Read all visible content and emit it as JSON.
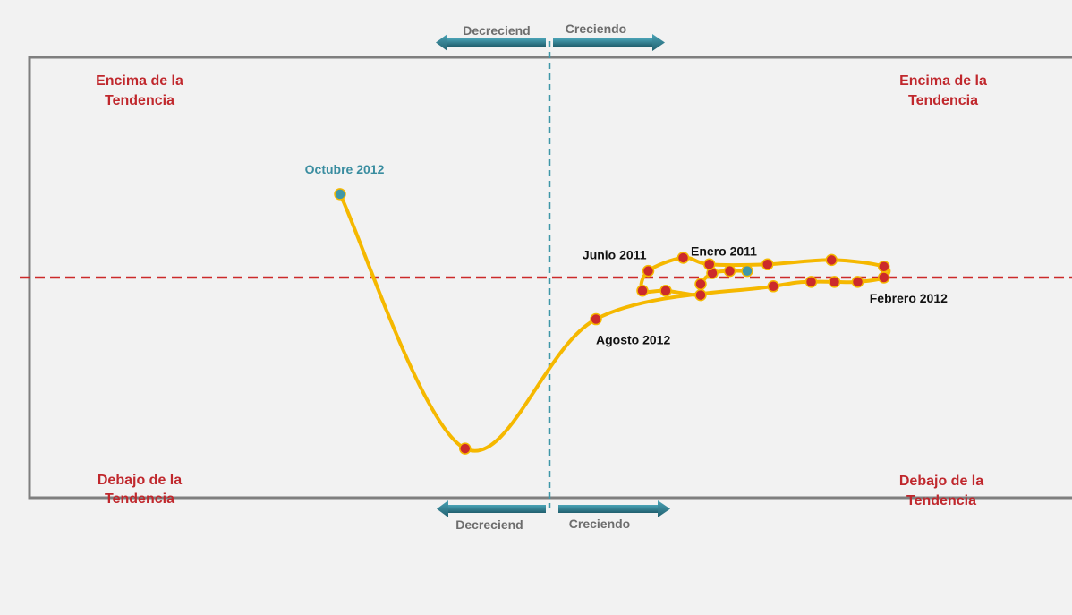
{
  "colors": {
    "frame": "#7f7f7f",
    "curve": "#f5b800",
    "dot": "#cc2a2a",
    "dot_highlight": "#3f97a8",
    "trend_line": "#cc2a2a",
    "divider": "#3f97a8",
    "arrow": "#2b7a8c",
    "quadrant_text": "#c0282d",
    "axis_text": "#6d6d6d",
    "point_text": "#111111",
    "highlight_text": "#3a8da0"
  },
  "quadrants": {
    "top_left": [
      "Encima de la",
      "Tendencia"
    ],
    "top_right": [
      "Encima de la",
      "Tendencia"
    ],
    "bottom_left": [
      "Debajo de la",
      "Tendencia"
    ],
    "bottom_right": [
      "Debajo de la",
      "Tendencia"
    ]
  },
  "direction_labels": {
    "top_left": "Decreciend",
    "top_right": "Creciendo",
    "bottom_left": "Decreciend",
    "bottom_right": "Creciendo"
  },
  "chart_data": {
    "type": "scatter",
    "connected": true,
    "x_divider": 0,
    "y_reference": 0,
    "points": [
      {
        "label": "Enero 2011",
        "x": 3.4,
        "y": 0.15,
        "highlight": true
      },
      {
        "x": 3.1,
        "y": 0.15
      },
      {
        "x": 2.8,
        "y": 0.1
      },
      {
        "x": 2.6,
        "y": -0.15
      },
      {
        "x": 2.6,
        "y": -0.4
      },
      {
        "x": 2.0,
        "y": -0.3
      },
      {
        "x": 1.6,
        "y": -0.3
      },
      {
        "label": "Junio 2011",
        "x": 1.7,
        "y": 0.15
      },
      {
        "x": 2.3,
        "y": 0.45
      },
      {
        "x": 2.75,
        "y": 0.3
      },
      {
        "x": 3.75,
        "y": 0.3
      },
      {
        "x": 4.85,
        "y": 0.4
      },
      {
        "x": 5.75,
        "y": 0.25
      },
      {
        "label": "Febrero 2012",
        "x": 5.75,
        "y": 0.0
      },
      {
        "x": 5.3,
        "y": -0.1
      },
      {
        "x": 4.9,
        "y": -0.1
      },
      {
        "x": 4.5,
        "y": -0.1
      },
      {
        "x": 3.85,
        "y": -0.2
      },
      {
        "label": "Agosto 2012",
        "x": 0.8,
        "y": -0.95
      },
      {
        "x": -1.45,
        "y": -3.9
      },
      {
        "label": "Octubre 2012",
        "x": -3.6,
        "y": 1.9,
        "highlight": true
      }
    ]
  }
}
